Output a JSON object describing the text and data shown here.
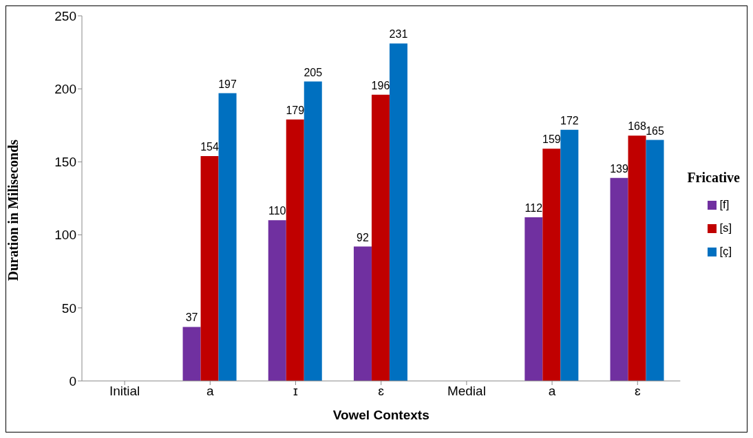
{
  "chart_data": {
    "type": "bar",
    "xlabel": "Vowel Contexts",
    "ylabel": "Duration in Miliseconds",
    "legend_title": "Fricative",
    "categories": [
      "Initial",
      "a",
      "ɪ",
      "ɛ",
      "Medial",
      "a",
      "ɛ"
    ],
    "series": [
      {
        "name": "[f]",
        "color": "#7030a0",
        "values": [
          null,
          37,
          110,
          92,
          null,
          112,
          139
        ]
      },
      {
        "name": "[s]",
        "color": "#c00000",
        "values": [
          null,
          154,
          179,
          196,
          null,
          159,
          168
        ]
      },
      {
        "name": "[ç]",
        "color": "#0070c0",
        "values": [
          null,
          197,
          205,
          231,
          null,
          172,
          165
        ]
      }
    ],
    "ylim": [
      0,
      250
    ],
    "yticks": [
      0,
      50,
      100,
      150,
      200,
      250
    ],
    "grid": false,
    "legend": "right",
    "data_labels": true
  }
}
